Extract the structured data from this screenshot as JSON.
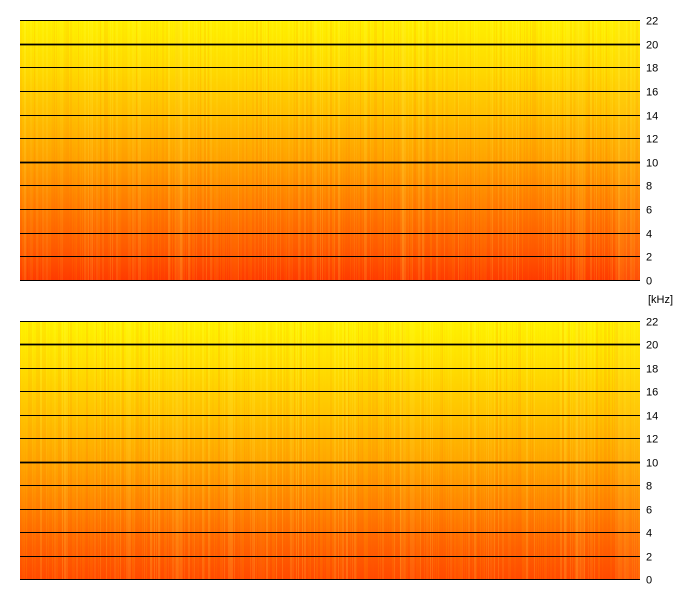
{
  "chart_data": {
    "type": "heatmap",
    "unit_label": "[kHz]",
    "channels": [
      {
        "yticks": [
          0,
          2,
          4,
          6,
          8,
          10,
          12,
          14,
          16,
          18,
          20,
          22
        ],
        "ylim": [
          0,
          22
        ]
      },
      {
        "yticks": [
          0,
          2,
          4,
          6,
          8,
          10,
          12,
          14,
          16,
          18,
          20,
          22
        ],
        "ylim": [
          0,
          22
        ]
      }
    ],
    "bold_gridlines": [
      10,
      20
    ],
    "colors": {
      "high": "#ff6a00",
      "mid": "#ffb000",
      "low": "#fff000",
      "grid": "#000000"
    }
  }
}
